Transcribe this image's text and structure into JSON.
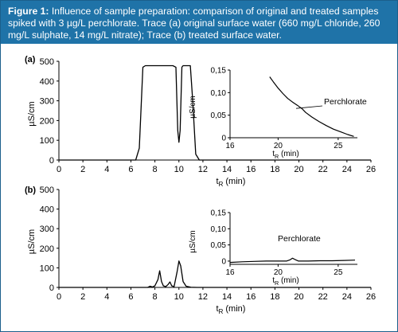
{
  "caption": {
    "label": "Figure 1:",
    "text": "Influence of sample preparation: comparison of original and treated samples spiked with 3 µg/L perchlorate. Trace (a) original surface water (660 mg/L chloride, 260 mg/L sulphate, 14 mg/L nitrate); Trace (b) treated surface water."
  },
  "colors": {
    "caption_bg": "#1f73a8",
    "caption_text": "#ffffff",
    "trace": "#000000",
    "border": "#1b5f8c"
  },
  "chart_data": [
    {
      "type": "line",
      "panel_label": "(a)",
      "xlabel_base": "t",
      "xlabel_sub": "R",
      "xlabel_unit": " (min)",
      "ylabel": "µS/cm",
      "xlim": [
        0,
        26
      ],
      "ylim": [
        0,
        500
      ],
      "xticks": [
        0,
        2,
        4,
        6,
        8,
        10,
        12,
        14,
        16,
        18,
        20,
        22,
        24,
        26
      ],
      "yticks": [
        0,
        100,
        200,
        300,
        400,
        500
      ],
      "series": [
        {
          "points": [
            [
              0,
              0
            ],
            [
              6.4,
              0
            ],
            [
              6.7,
              60
            ],
            [
              7.0,
              470
            ],
            [
              7.2,
              478
            ],
            [
              9.5,
              478
            ],
            [
              9.75,
              470
            ],
            [
              9.9,
              150
            ],
            [
              10.0,
              90
            ],
            [
              10.1,
              150
            ],
            [
              10.25,
              470
            ],
            [
              10.35,
              478
            ],
            [
              10.95,
              478
            ],
            [
              11.15,
              300
            ],
            [
              11.4,
              30
            ],
            [
              11.7,
              0
            ],
            [
              26,
              0
            ]
          ]
        }
      ]
    },
    {
      "type": "line",
      "inset_of": "(a)",
      "ylabel": "µS/cm",
      "xlabel_base": "t",
      "xlabel_sub": "R",
      "xlabel_unit": " (min)",
      "xlim": [
        16,
        26.6
      ],
      "ylim": [
        0,
        0.15
      ],
      "xticks": [
        16,
        20,
        25
      ],
      "ytick_labels": [
        "0",
        "0,05",
        "0,10",
        "0,15"
      ],
      "ytick_values": [
        0,
        0.05,
        0.1,
        0.15
      ],
      "annotations": [
        {
          "text": "Perchlorate",
          "x": 21.5,
          "y": 0.065
        }
      ],
      "series": [
        {
          "points": [
            [
              19.3,
              0.135
            ],
            [
              19.6,
              0.124
            ],
            [
              20.0,
              0.11
            ],
            [
              20.4,
              0.098
            ],
            [
              20.8,
              0.087
            ],
            [
              21.2,
              0.079
            ],
            [
              21.6,
              0.072
            ],
            [
              22.0,
              0.064
            ],
            [
              22.3,
              0.056
            ],
            [
              22.8,
              0.046
            ],
            [
              23.4,
              0.036
            ],
            [
              24.0,
              0.027
            ],
            [
              24.6,
              0.019
            ],
            [
              25.2,
              0.013
            ],
            [
              25.8,
              0.007
            ],
            [
              26.3,
              0.003
            ]
          ]
        }
      ]
    },
    {
      "type": "line",
      "panel_label": "(b)",
      "xlabel_base": "t",
      "xlabel_sub": "R",
      "xlabel_unit": " (min)",
      "ylabel": "µS/cm",
      "xlim": [
        0,
        26
      ],
      "ylim": [
        0,
        500
      ],
      "xticks": [
        0,
        2,
        4,
        6,
        8,
        10,
        12,
        14,
        16,
        18,
        20,
        22,
        24,
        26
      ],
      "yticks": [
        0,
        100,
        200,
        300,
        400,
        500
      ],
      "series": [
        {
          "points": [
            [
              0,
              0
            ],
            [
              7.4,
              0
            ],
            [
              7.6,
              6
            ],
            [
              7.8,
              2
            ],
            [
              8.0,
              8
            ],
            [
              8.25,
              40
            ],
            [
              8.4,
              85
            ],
            [
              8.55,
              30
            ],
            [
              8.7,
              8
            ],
            [
              8.9,
              4
            ],
            [
              9.1,
              15
            ],
            [
              9.25,
              28
            ],
            [
              9.4,
              8
            ],
            [
              9.6,
              4
            ],
            [
              9.85,
              80
            ],
            [
              10.0,
              135
            ],
            [
              10.15,
              110
            ],
            [
              10.35,
              30
            ],
            [
              10.6,
              6
            ],
            [
              11.0,
              1
            ],
            [
              11.5,
              0
            ],
            [
              26,
              0
            ]
          ]
        }
      ]
    },
    {
      "type": "line",
      "inset_of": "(b)",
      "ylabel": "µS/cm",
      "xlabel_base": "t",
      "xlabel_sub": "R",
      "xlabel_unit": " (min)",
      "xlim": [
        16,
        26.6
      ],
      "ylim": [
        -0.01,
        0.15
      ],
      "xticks": [
        16,
        20,
        25
      ],
      "ytick_labels": [
        "0",
        "0,05",
        "0,10",
        "0,15"
      ],
      "ytick_values": [
        0,
        0.05,
        0.1,
        0.15
      ],
      "annotations": [
        {
          "text": "Perchlorate",
          "x": 21.2,
          "y": 0.02
        }
      ],
      "series": [
        {
          "points": [
            [
              16,
              -0.004
            ],
            [
              17,
              -0.002
            ],
            [
              18,
              -0.001
            ],
            [
              19,
              0.0
            ],
            [
              20,
              0.0
            ],
            [
              20.7,
              0.0
            ],
            [
              21.0,
              0.004
            ],
            [
              21.2,
              0.009
            ],
            [
              21.4,
              0.005
            ],
            [
              21.7,
              0.0
            ],
            [
              22.5,
              0.0
            ],
            [
              23.5,
              0.001
            ],
            [
              24.5,
              0.001
            ],
            [
              25.5,
              0.002
            ],
            [
              26.4,
              0.003
            ]
          ]
        }
      ]
    }
  ]
}
